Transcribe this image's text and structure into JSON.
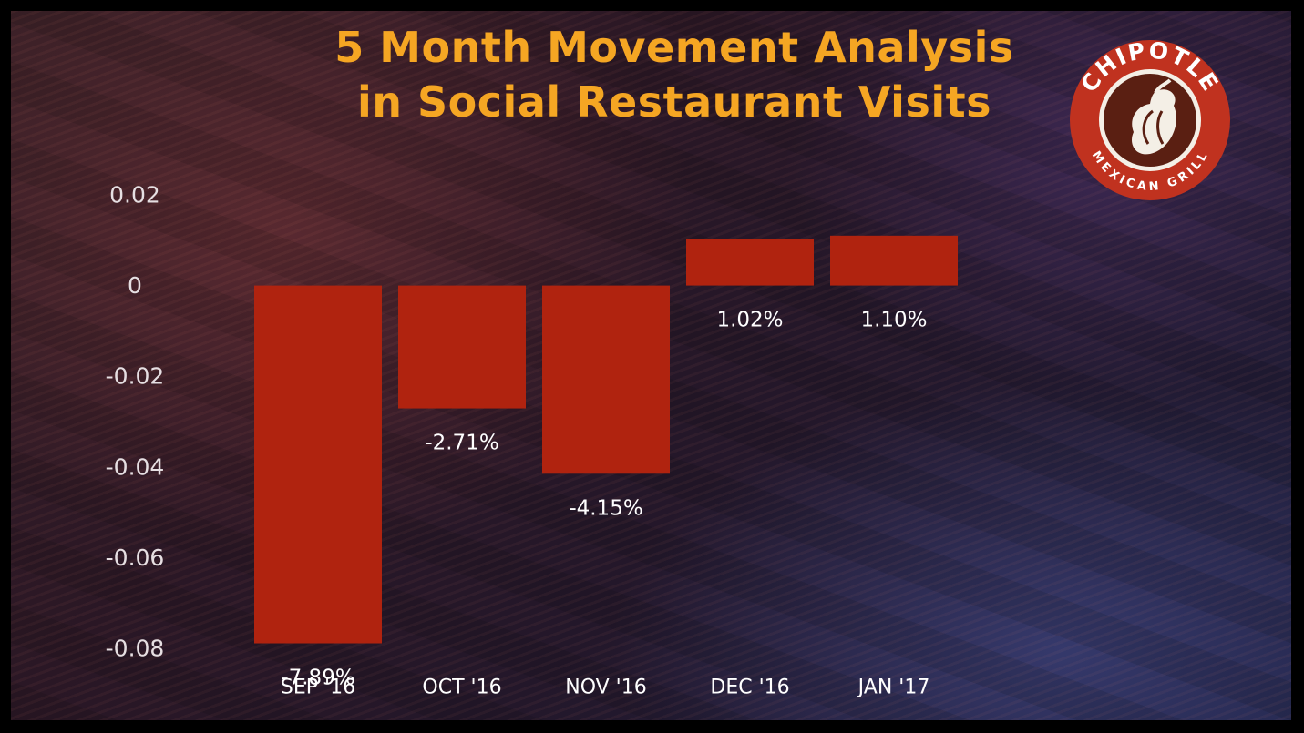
{
  "title_lines": [
    "5 Month Movement Analysis",
    "in Social Restaurant Visits"
  ],
  "logo": {
    "name": "chipotle-logo-icon",
    "top_text": "CHIPOTLE",
    "bottom_text": "MEXICAN GRILL",
    "color": "#c0321f"
  },
  "chart_data": {
    "type": "bar",
    "title": "5 Month Movement Analysis in Social Restaurant Visits",
    "xlabel": "",
    "ylabel": "",
    "categories": [
      "SEP '16",
      "OCT '16",
      "NOV '16",
      "DEC '16",
      "JAN '17"
    ],
    "values": [
      -0.0789,
      -0.0271,
      -0.0415,
      0.0102,
      0.011
    ],
    "data_labels": [
      "-7.89%",
      "-2.71%",
      "-4.15%",
      "1.02%",
      "1.10%"
    ],
    "ylim": [
      -0.08,
      0.02
    ],
    "y_ticks": [
      0.02,
      0,
      -0.02,
      -0.04,
      -0.06,
      -0.08
    ],
    "y_tick_labels": [
      "0.02",
      "0",
      "-0.02",
      "-0.04",
      "-0.06",
      "-0.08"
    ],
    "grid": false,
    "legend": "none",
    "bar_color": "#b0230f"
  }
}
